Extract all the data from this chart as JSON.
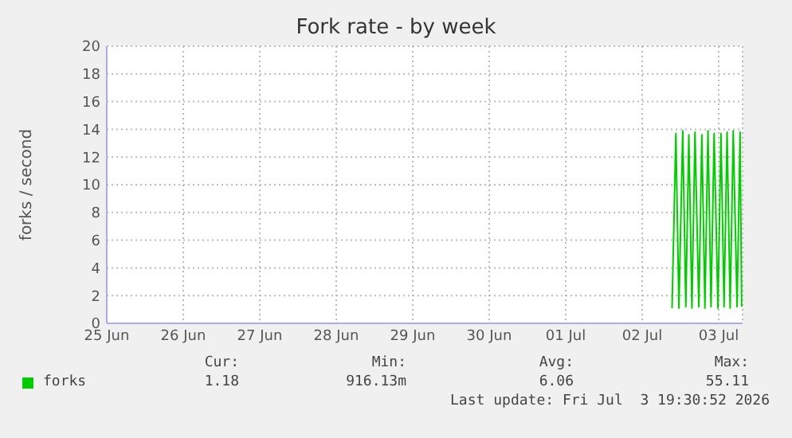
{
  "chart_data": {
    "type": "line",
    "title": "Fork rate - by week",
    "ylabel": "forks / second",
    "xlim": [
      "--06-25T12:00",
      "--07-03T19:30"
    ],
    "xticks": [
      {
        "value": "--06-25T12:00",
        "label": "25 Jun"
      },
      {
        "value": "--06-26T12:00",
        "label": "26 Jun"
      },
      {
        "value": "--06-27T12:00",
        "label": "27 Jun"
      },
      {
        "value": "--06-28T12:00",
        "label": "28 Jun"
      },
      {
        "value": "--06-29T12:00",
        "label": "29 Jun"
      },
      {
        "value": "--06-30T12:00",
        "label": "30 Jun"
      },
      {
        "value": "--07-01T12:00",
        "label": "01 Jul"
      },
      {
        "value": "--07-02T12:00",
        "label": "02 Jul"
      },
      {
        "value": "--07-03T12:00",
        "label": "03 Jul"
      }
    ],
    "ylim": [
      0,
      20
    ],
    "yticks": [
      0,
      2,
      4,
      6,
      8,
      10,
      12,
      14,
      16,
      18,
      20
    ],
    "grid": true,
    "legend": "bottom",
    "series": [
      {
        "name": "forks",
        "color": "#00cc00",
        "x": [
          "--07-02T21:22",
          "--07-02T22:34",
          "--07-02T23:31",
          "--07-03T00:43",
          "--07-03T01:41",
          "--07-03T02:38",
          "--07-03T03:36",
          "--07-03T04:34",
          "--07-03T05:46",
          "--07-03T06:43",
          "--07-03T07:41",
          "--07-03T08:38",
          "--07-03T09:36",
          "--07-03T10:34",
          "--07-03T11:46",
          "--07-03T12:43",
          "--07-03T13:41",
          "--07-03T14:38",
          "--07-03T15:36",
          "--07-03T16:34",
          "--07-03T17:46",
          "--07-03T18:43",
          "--07-03T19:12"
        ],
        "values": [
          1.1,
          13.7,
          1.1,
          13.9,
          1.2,
          13.6,
          1.1,
          13.8,
          1.2,
          13.6,
          1.1,
          13.9,
          1.2,
          13.7,
          1.1,
          13.7,
          1.2,
          13.8,
          1.1,
          13.9,
          1.2,
          13.8,
          1.2
        ]
      }
    ],
    "annotations": [
      "Cur:",
      "Min:",
      "Avg:",
      "Max:",
      "1.18",
      "916.13m",
      "6.06",
      "55.11",
      "Last update: Fri Jul  3 19:30:52 2026"
    ]
  }
}
